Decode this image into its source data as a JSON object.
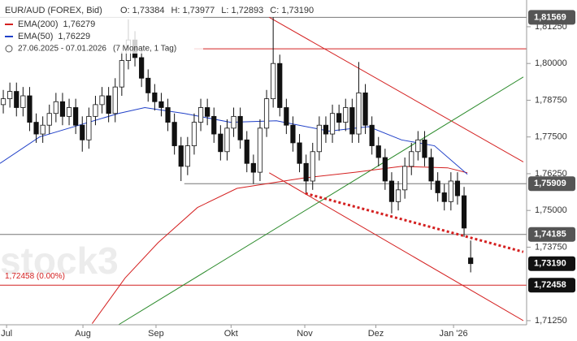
{
  "chart_data": {
    "type": "candlestick",
    "title": "EUR/AUD (FOREX, Bid)",
    "ohlc_text": [
      "O: 1,73384",
      "H: 1,73977",
      "L: 1,72893",
      "C: 1,73190"
    ],
    "period": "27.06.2025 - 07.01.2026",
    "period_note": "(7 Monate, 1 Tag)",
    "annotation": "1,72458 (0.00%)",
    "watermark": "stock3",
    "up_color": "#ffffff",
    "down_color": "#111111",
    "opens": [
      1.786,
      1.788,
      1.7905,
      1.785,
      1.789,
      1.78,
      1.776,
      1.779,
      1.783,
      1.787,
      1.782,
      1.785,
      1.779,
      1.774,
      1.782,
      1.786,
      1.789,
      1.783,
      1.792,
      1.801,
      1.808,
      1.802,
      1.795,
      1.79,
      1.787,
      1.785,
      1.78,
      1.772,
      1.765,
      1.772,
      1.78,
      1.785,
      1.782,
      1.776,
      1.77,
      1.778,
      1.782,
      1.774,
      1.766,
      1.763,
      1.778,
      1.788,
      1.8,
      1.785,
      1.779,
      1.773,
      1.766,
      1.76,
      1.77,
      1.779,
      1.776,
      1.783,
      1.78,
      1.785,
      1.776,
      1.79,
      1.779,
      1.772,
      1.768,
      1.76,
      1.753,
      1.757,
      1.765,
      1.77,
      1.774,
      1.768,
      1.76,
      1.756,
      1.753,
      1.76,
      1.755,
      1.73384
    ],
    "highs": [
      1.791,
      1.7935,
      1.7935,
      1.792,
      1.792,
      1.783,
      1.782,
      1.786,
      1.79,
      1.79,
      1.788,
      1.788,
      1.782,
      1.785,
      1.789,
      1.792,
      1.792,
      1.795,
      1.804,
      1.815,
      1.811,
      1.805,
      1.798,
      1.793,
      1.79,
      1.788,
      1.783,
      1.775,
      1.775,
      1.783,
      1.788,
      1.788,
      1.785,
      1.779,
      1.781,
      1.785,
      1.785,
      1.777,
      1.769,
      1.781,
      1.791,
      1.8157,
      1.803,
      1.788,
      1.782,
      1.776,
      1.769,
      1.773,
      1.782,
      1.782,
      1.786,
      1.786,
      1.788,
      1.788,
      1.8005,
      1.793,
      1.782,
      1.775,
      1.771,
      1.763,
      1.76,
      1.768,
      1.773,
      1.777,
      1.777,
      1.771,
      1.763,
      1.759,
      1.763,
      1.763,
      1.758,
      1.73977
    ],
    "lows": [
      1.783,
      1.785,
      1.782,
      1.782,
      1.777,
      1.773,
      1.773,
      1.776,
      1.78,
      1.779,
      1.779,
      1.776,
      1.77,
      1.771,
      1.779,
      1.783,
      1.78,
      1.78,
      1.789,
      1.798,
      1.799,
      1.792,
      1.787,
      1.784,
      1.782,
      1.777,
      1.769,
      1.76,
      1.762,
      1.769,
      1.777,
      1.779,
      1.773,
      1.767,
      1.767,
      1.775,
      1.771,
      1.763,
      1.759,
      1.76,
      1.775,
      1.785,
      1.782,
      1.776,
      1.77,
      1.763,
      1.756,
      1.757,
      1.767,
      1.773,
      1.773,
      1.777,
      1.777,
      1.773,
      1.773,
      1.776,
      1.769,
      1.765,
      1.757,
      1.749,
      1.75,
      1.754,
      1.762,
      1.767,
      1.765,
      1.757,
      1.753,
      1.75,
      1.75,
      1.752,
      1.741,
      1.72893
    ],
    "closes": [
      1.788,
      1.7905,
      1.785,
      1.789,
      1.78,
      1.776,
      1.779,
      1.783,
      1.787,
      1.782,
      1.785,
      1.779,
      1.774,
      1.782,
      1.786,
      1.789,
      1.783,
      1.792,
      1.801,
      1.808,
      1.802,
      1.795,
      1.79,
      1.787,
      1.785,
      1.78,
      1.772,
      1.765,
      1.772,
      1.78,
      1.785,
      1.782,
      1.776,
      1.77,
      1.778,
      1.782,
      1.774,
      1.766,
      1.763,
      1.778,
      1.788,
      1.8,
      1.785,
      1.779,
      1.773,
      1.766,
      1.76,
      1.77,
      1.779,
      1.776,
      1.783,
      1.78,
      1.785,
      1.776,
      1.79,
      1.779,
      1.772,
      1.768,
      1.76,
      1.753,
      1.757,
      1.765,
      1.77,
      1.774,
      1.768,
      1.76,
      1.756,
      1.753,
      1.76,
      1.755,
      1.744,
      1.7319
    ],
    "series": [
      {
        "name": "EMA(200)",
        "value_label": "1,76279",
        "color": "#d42020",
        "x": [
          14,
          19,
          24,
          30,
          36,
          46,
          54,
          61,
          68,
          71
        ],
        "values": [
          1.7115,
          1.727,
          1.739,
          1.751,
          1.7575,
          1.761,
          1.763,
          1.765,
          1.7645,
          1.7628
        ]
      },
      {
        "name": "EMA(50)",
        "value_label": "1,76229",
        "color": "#2040c8",
        "x": [
          0,
          6,
          12,
          18,
          22,
          28,
          35,
          42,
          50,
          56,
          61,
          66,
          71
        ],
        "values": [
          1.766,
          1.775,
          1.779,
          1.783,
          1.785,
          1.783,
          1.78,
          1.7805,
          1.777,
          1.7785,
          1.774,
          1.772,
          1.7623
        ]
      }
    ],
    "trendlines": [
      {
        "color": "#d42020",
        "x": [
          40.9,
          79.5
        ],
        "values": [
          1.8157,
          1.7665
        ],
        "dashed": false
      },
      {
        "color": "#d42020",
        "x": [
          40.9,
          79.5
        ],
        "values": [
          1.7628,
          1.7125
        ],
        "dashed": false
      },
      {
        "color": "#2a8a2a",
        "x": [
          18,
          79.5
        ],
        "values": [
          1.7111,
          1.7954
        ],
        "dashed": false
      },
      {
        "color": "#d42020",
        "x": [
          46.4,
          79.5
        ],
        "values": [
          1.7558,
          1.7359
        ],
        "dashed": true
      }
    ],
    "levels": [
      {
        "value": 1.81569,
        "label": "1,81569",
        "color": "#777777",
        "xstart": 0,
        "box": "#555555"
      },
      {
        "value": 1.805,
        "color": "#d42020",
        "xstart": 29.5
      },
      {
        "value": 1.75909,
        "label": "1,75909",
        "color": "#777777",
        "xstart": 28,
        "box": "#555555"
      },
      {
        "value": 1.74185,
        "label": "1,74185",
        "color": "#777777",
        "xstart": 0,
        "box": "#555555"
      },
      {
        "value": 1.7319,
        "label": "1,73190",
        "box": "#111111"
      },
      {
        "value": 1.72458,
        "label": "1,72458",
        "color": "#d42020",
        "xstart": 0,
        "box": "#111111"
      }
    ],
    "xlim": [
      0,
      80
    ],
    "ylim": [
      1.7111,
      1.8216
    ],
    "xticks": [
      {
        "value": 1.0,
        "label": "Jul"
      },
      {
        "value": 12.6,
        "label": "Aug"
      },
      {
        "value": 23.7,
        "label": "Sep"
      },
      {
        "value": 35.1,
        "label": "Okt"
      },
      {
        "value": 46.3,
        "label": "Nov"
      },
      {
        "value": 57.1,
        "label": "Dez"
      },
      {
        "value": 68.9,
        "label": "Jan '26"
      }
    ],
    "yticks": [
      {
        "value": 1.8125,
        "label": "1,81250"
      },
      {
        "value": 1.8,
        "label": "1,80000"
      },
      {
        "value": 1.7875,
        "label": "1,78750"
      },
      {
        "value": 1.775,
        "label": "1,77500"
      },
      {
        "value": 1.7625,
        "label": "1,76250"
      },
      {
        "value": 1.75,
        "label": "1,75000"
      },
      {
        "value": 1.7375,
        "label": "1,73750"
      },
      {
        "value": 1.7125,
        "label": "1,71250"
      }
    ]
  }
}
